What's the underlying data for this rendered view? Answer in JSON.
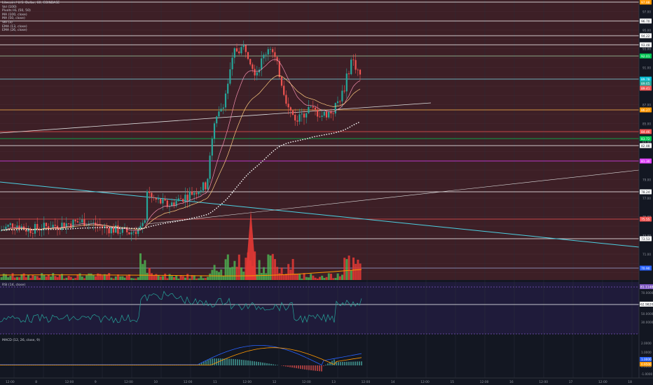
{
  "header": {
    "title": "Litecoin / U.S. Dollar, 60, COINBASE",
    "indicators": [
      "Vol (100)",
      "Pivots HL (50, 50)",
      "MA (100, close)",
      "MA (50, close)",
      "Vol (3)",
      "EMA (13, close)",
      "EMA (26, close)"
    ]
  },
  "price_axis": {
    "ticks": [
      "97.00",
      "95.00",
      "93.00",
      "91.00",
      "89.00",
      "87.00",
      "85.00",
      "83.00",
      "81.00",
      "79.00",
      "77.00",
      "75.00",
      "73.00",
      "71.00"
    ],
    "labels": [
      {
        "text": "97.88",
        "color": "#ff9800"
      },
      {
        "text": "96.70",
        "color": "#ffffff"
      },
      {
        "text": "94.22",
        "color": "#ffffff"
      },
      {
        "text": "93.48",
        "color": "#ffffff"
      },
      {
        "text": "92.01",
        "color": "#00c853"
      },
      {
        "text": "89.78",
        "color": "#00bcd4"
      },
      {
        "text": "89.65",
        "color": "#26a69a"
      },
      {
        "text": "89.41",
        "color": "#ef5350"
      },
      {
        "text": "86.27",
        "color": "#ff9800"
      },
      {
        "text": "84.46",
        "color": "#ef5350"
      },
      {
        "text": "83.72",
        "color": "#00c853"
      },
      {
        "text": "82.88",
        "color": "#ffffff"
      },
      {
        "text": "81.30",
        "color": "#e040fb"
      },
      {
        "text": "78.24",
        "color": "#ffffff"
      },
      {
        "text": "75.55",
        "color": "#ef5350"
      },
      {
        "text": "73.53",
        "color": "#ffffff"
      },
      {
        "text": "70.90",
        "color": "#2962ff"
      }
    ]
  },
  "rsi": {
    "label": "RSI (14, close)",
    "ticks": [
      "70.0000",
      "50.0000",
      "30.0000"
    ],
    "value_label": "81.1148",
    "value_color": "#7e57c2",
    "value2_label": "62.9820",
    "value2_color": "#ffffff"
  },
  "macd": {
    "label": "MACD (12, 26, close, 9)",
    "ticks": [
      "2.0000",
      "1.0000",
      "0.0000",
      "-1.0000"
    ],
    "value_labels": [
      {
        "text": "1.0000",
        "color": "#2962ff"
      },
      {
        "text": "0.9500",
        "color": "#ff9800"
      }
    ]
  },
  "time_axis": [
    "12:00",
    "8",
    "12:00",
    "9",
    "12:00",
    "10",
    "12:00",
    "11",
    "12:00",
    "12",
    "12:00",
    "13",
    "12:00",
    "14",
    "12:00",
    "15",
    "12:00",
    "16",
    "12:00",
    "17",
    "12:00",
    "18"
  ]
}
